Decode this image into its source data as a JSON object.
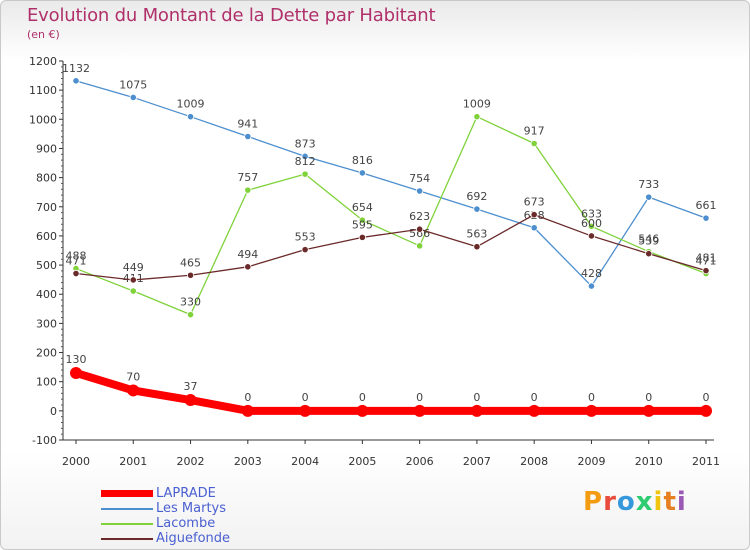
{
  "header": {
    "title": "Evolution du Montant de la Dette par Habitant",
    "unit": "(en €)"
  },
  "brand": {
    "letters": [
      "P",
      "r",
      "o",
      "x",
      "i",
      "t",
      "i"
    ],
    "colors": [
      "#f39c12",
      "#e74c3c",
      "#3498db",
      "#2ecc71",
      "#f1c40f",
      "#e67e22",
      "#9b59b6"
    ]
  },
  "chart_data": {
    "type": "line",
    "x": [
      "2000",
      "2001",
      "2002",
      "2003",
      "2004",
      "2005",
      "2006",
      "2007",
      "2008",
      "2009",
      "2010",
      "2011"
    ],
    "ylim": [
      -100,
      1200
    ],
    "yticks": [
      -100,
      0,
      100,
      200,
      300,
      400,
      500,
      600,
      700,
      800,
      900,
      1000,
      1100,
      1200
    ],
    "grid": false,
    "legend_position": "bottom-left",
    "series": [
      {
        "name": "LAPRADE",
        "color": "#ff0000",
        "values": [
          130,
          70,
          37,
          0,
          0,
          0,
          0,
          0,
          0,
          0,
          0,
          0
        ]
      },
      {
        "name": "Les Martys",
        "color": "#4d8fce",
        "values": [
          1132,
          1075,
          1009,
          941,
          873,
          816,
          754,
          692,
          628,
          428,
          733,
          661
        ]
      },
      {
        "name": "Lacombe",
        "color": "#7fd23a",
        "values": [
          488,
          411,
          330,
          757,
          812,
          654,
          566,
          1009,
          917,
          633,
          546,
          471
        ]
      },
      {
        "name": "Aiguefonde",
        "color": "#6b2a2a",
        "values": [
          471,
          449,
          465,
          494,
          553,
          595,
          623,
          563,
          673,
          600,
          539,
          481
        ]
      }
    ]
  }
}
